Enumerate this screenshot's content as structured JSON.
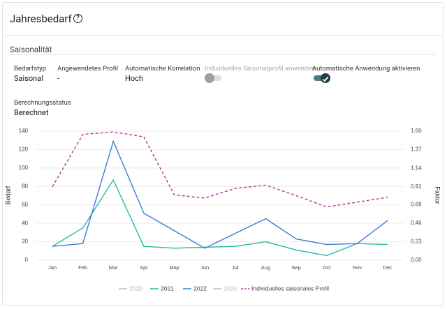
{
  "header": {
    "title": "Jahresbedarf"
  },
  "section": {
    "title": "Saisonalität"
  },
  "fields": [
    {
      "label": "Bedarfstyp",
      "value": "Saisonal"
    },
    {
      "label": "Angewendetes Profil",
      "value": "-"
    },
    {
      "label": "Automatische Korrelation",
      "value": "Hoch"
    },
    {
      "label": "Individuelles Saisonalprofil anwenden",
      "toggle": false
    },
    {
      "label": "Automatische Anwendung aktivieren",
      "toggle": true
    }
  ],
  "status": {
    "label": "Berechnungsstatus",
    "value": "Berechnet"
  },
  "chart_data": {
    "type": "line",
    "ylabel": "Bedarf",
    "y2label": "Faktor",
    "categories": [
      "Jan",
      "Feb",
      "Mar",
      "Apr",
      "May",
      "Jun",
      "Jul",
      "Aug",
      "Sep",
      "Oct",
      "Nov",
      "Dec"
    ],
    "ylim": [
      0,
      140
    ],
    "yticks": [
      0,
      20,
      40,
      60,
      80,
      100,
      120,
      140
    ],
    "y2lim": [
      0,
      1.6
    ],
    "y2ticks": [
      {
        "value": 0,
        "label": "0.00"
      },
      0.23,
      0.46,
      0.69,
      0.91,
      1.14,
      1.37,
      {
        "value": 1.6,
        "label": "1.60"
      }
    ],
    "grid": true,
    "series": [
      {
        "name": "2020",
        "color": "#bdbdbd",
        "values": [
          null,
          null,
          null,
          null,
          null,
          null,
          null,
          null,
          null,
          null,
          null,
          null
        ]
      },
      {
        "name": "2021",
        "color": "#26b9a3",
        "values": [
          15,
          35,
          87,
          15,
          13,
          14,
          15,
          20,
          11,
          5,
          18,
          17
        ]
      },
      {
        "name": "2022",
        "color": "#3a7bd5",
        "values": [
          15,
          18,
          129,
          51,
          32,
          13,
          29,
          45,
          23,
          17,
          18,
          43
        ]
      },
      {
        "name": "2023",
        "color": "#bdbdbd",
        "values": [
          null,
          null,
          null,
          null,
          null,
          null,
          null,
          null,
          null,
          null,
          null,
          null
        ]
      },
      {
        "name": "Individuelles saisonales Profil",
        "color": "#b03a9a",
        "axis": "y2",
        "dashed": true,
        "values": [
          0.91,
          1.56,
          1.59,
          1.53,
          0.81,
          0.77,
          0.89,
          0.93,
          0.8,
          0.66,
          0.72,
          0.78
        ]
      }
    ]
  }
}
